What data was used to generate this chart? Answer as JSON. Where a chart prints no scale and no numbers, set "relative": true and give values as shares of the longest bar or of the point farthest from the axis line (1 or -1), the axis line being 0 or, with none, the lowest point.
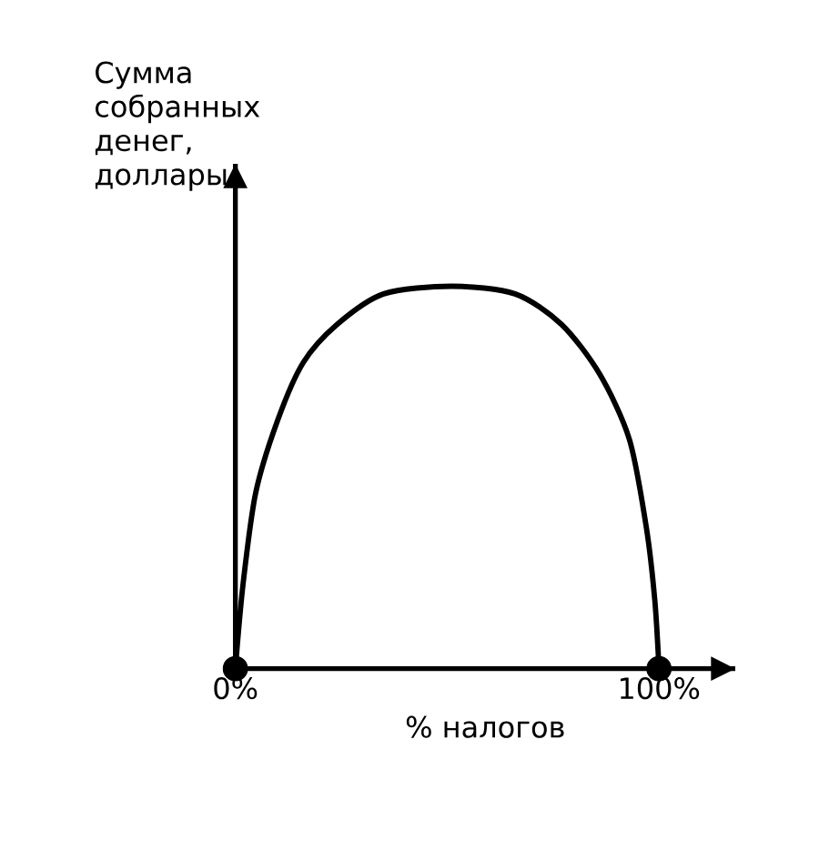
{
  "chart_data": {
    "type": "line",
    "relative": true,
    "xlabel": "% налогов",
    "ylabel": "Сумма собранных денег, доллары",
    "xlim": [
      0,
      118
    ],
    "xticks": [
      {
        "value": 0,
        "label": "0%"
      },
      {
        "value": 100,
        "label": "100%"
      }
    ],
    "tick_labels": "x",
    "grid": false,
    "series": [
      {
        "color": "#000000",
        "x": [
          0,
          1.8,
          4.8,
          10,
          16,
          24,
          35,
          51,
          66,
          77,
          86,
          93,
          97,
          99,
          100
        ],
        "values": [
          0,
          0.22,
          0.46,
          0.65,
          0.8,
          0.9,
          0.98,
          1.0,
          0.98,
          0.9,
          0.77,
          0.6,
          0.37,
          0.18,
          0
        ]
      },
      {
        "type": "scatter",
        "color": "#000000",
        "x": [
          0,
          100
        ],
        "values": [
          0,
          0
        ]
      }
    ]
  }
}
